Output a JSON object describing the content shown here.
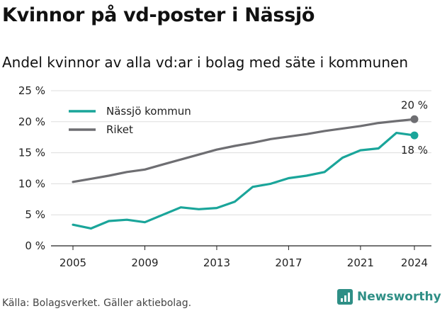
{
  "title": "Kvinnor på vd-poster i Nässjö",
  "subtitle": "Andel kvinnor av alla vd:ar i bolag med säte i kommunen",
  "source": "Källa: Bolagsverket. Gäller aktiebolag.",
  "brand": "Newsworthy",
  "colors": {
    "nassjo": "#1aa59a",
    "riket": "#6e6e72",
    "grid": "#dddddd",
    "axis": "#222222",
    "brand": "#2f8f86"
  },
  "chart_data": {
    "type": "line",
    "x": [
      2005,
      2006,
      2007,
      2008,
      2009,
      2010,
      2011,
      2012,
      2013,
      2014,
      2015,
      2016,
      2017,
      2018,
      2019,
      2020,
      2021,
      2022,
      2023,
      2024
    ],
    "xticks": [
      2005,
      2009,
      2013,
      2017,
      2021,
      2024
    ],
    "xtick_labels": [
      "2005",
      "2009",
      "2013",
      "2017",
      "2021",
      "2024"
    ],
    "ylim": [
      0,
      25
    ],
    "yticks": [
      0,
      5,
      10,
      15,
      20,
      25
    ],
    "ytick_labels": [
      "0 %",
      "5 %",
      "10 %",
      "15 %",
      "20 %",
      "25 %"
    ],
    "grid": true,
    "legend_position": "top-left",
    "series": [
      {
        "name": "Nässjö kommun",
        "color": "#1aa59a",
        "values": [
          3.4,
          2.8,
          4.0,
          4.2,
          3.8,
          5.0,
          6.2,
          5.9,
          6.1,
          7.1,
          9.5,
          10.0,
          10.9,
          11.3,
          11.9,
          14.2,
          15.4,
          15.7,
          18.2,
          17.8
        ],
        "end_label": "18 %"
      },
      {
        "name": "Riket",
        "color": "#6e6e72",
        "values": [
          10.3,
          10.8,
          11.3,
          11.9,
          12.3,
          13.1,
          13.9,
          14.7,
          15.5,
          16.1,
          16.6,
          17.2,
          17.6,
          18.0,
          18.5,
          18.9,
          19.3,
          19.8,
          20.1,
          20.4
        ],
        "end_label": "20 %"
      }
    ]
  }
}
